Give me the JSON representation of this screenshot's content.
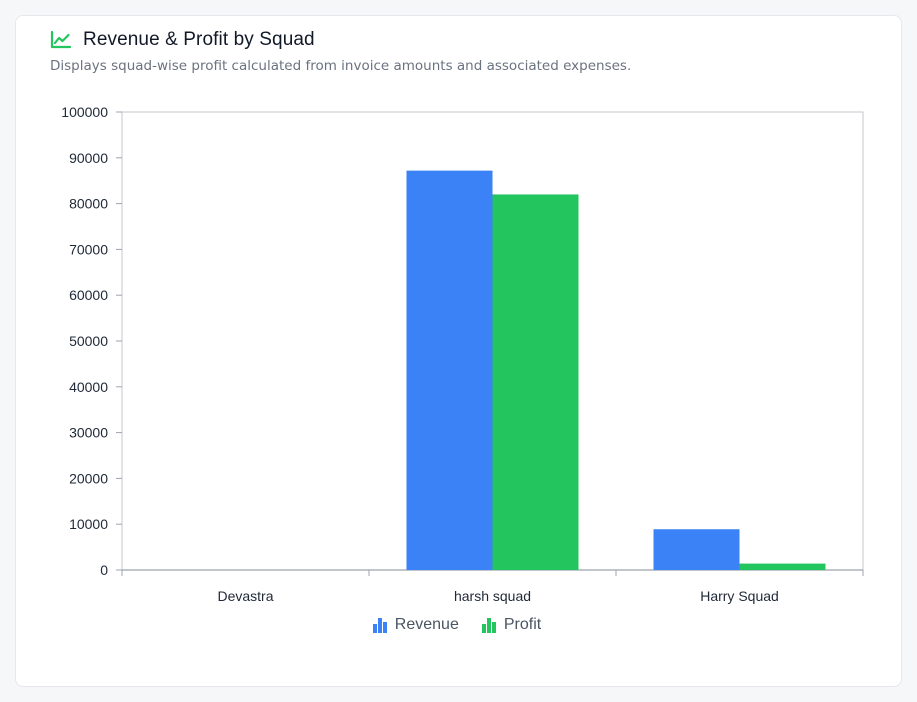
{
  "header": {
    "title": "Revenue & Profit by Squad",
    "subtitle": "Displays squad-wise profit calculated from invoice amounts and associated expenses.",
    "icon": "line-chart-icon"
  },
  "colors": {
    "revenue": "#3b82f6",
    "profit": "#22c55e",
    "accent": "#22c55e",
    "axis": "#9ca3af"
  },
  "chart_data": {
    "type": "bar",
    "title": "Revenue & Profit by Squad",
    "xlabel": "",
    "ylabel": "",
    "categories": [
      "Devastra",
      "harsh squad",
      "Harry Squad"
    ],
    "series": [
      {
        "name": "Revenue",
        "values": [
          0,
          87200,
          8900
        ]
      },
      {
        "name": "Profit",
        "values": [
          0,
          82000,
          1400
        ]
      }
    ],
    "ylim": [
      0,
      100000
    ],
    "yticks": [
      0,
      10000,
      20000,
      30000,
      40000,
      50000,
      60000,
      70000,
      80000,
      90000,
      100000
    ],
    "legend_position": "bottom-center",
    "grid": false
  },
  "legend": {
    "items": [
      {
        "label": "Revenue",
        "icon": "bar-chart-icon"
      },
      {
        "label": "Profit",
        "icon": "bar-chart-icon"
      }
    ]
  }
}
